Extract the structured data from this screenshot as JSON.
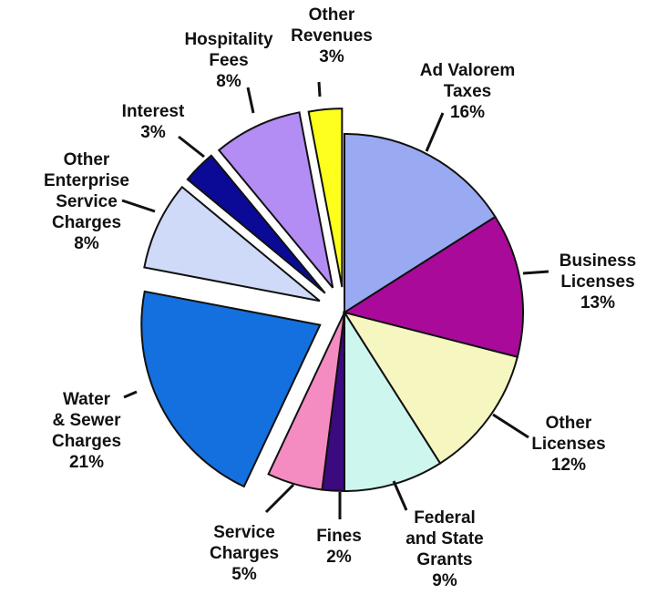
{
  "chart_data": {
    "type": "pie",
    "unit": "%",
    "slices": [
      {
        "label_lines": [
          "Ad Valorem",
          "Taxes"
        ],
        "value": 16,
        "color": "#9aaaf2"
      },
      {
        "label_lines": [
          "Business",
          "Licenses"
        ],
        "value": 13,
        "color": "#aa0a9a"
      },
      {
        "label_lines": [
          "Other",
          "Licenses"
        ],
        "value": 12,
        "color": "#f6f6c0"
      },
      {
        "label_lines": [
          "Federal",
          "and State",
          "Grants"
        ],
        "value": 9,
        "color": "#cdf6ee"
      },
      {
        "label_lines": [
          "Fines"
        ],
        "value": 2,
        "color": "#3a0a7e"
      },
      {
        "label_lines": [
          "Service",
          "Charges"
        ],
        "value": 5,
        "color": "#f48cc2"
      },
      {
        "label_lines": [
          "Water",
          "& Sewer",
          "Charges"
        ],
        "value": 21,
        "color": "#1470de"
      },
      {
        "label_lines": [
          "Other",
          "Enterprise",
          "Service",
          "Charges"
        ],
        "value": 8,
        "color": "#cfdaf8"
      },
      {
        "label_lines": [
          "Interest"
        ],
        "value": 3,
        "color": "#0a0a96"
      },
      {
        "label_lines": [
          "Hospitality",
          "Fees"
        ],
        "value": 8,
        "color": "#b38cf4"
      },
      {
        "label_lines": [
          "Other",
          "Revenues"
        ],
        "value": 3,
        "color": "#ffff1e"
      }
    ]
  }
}
